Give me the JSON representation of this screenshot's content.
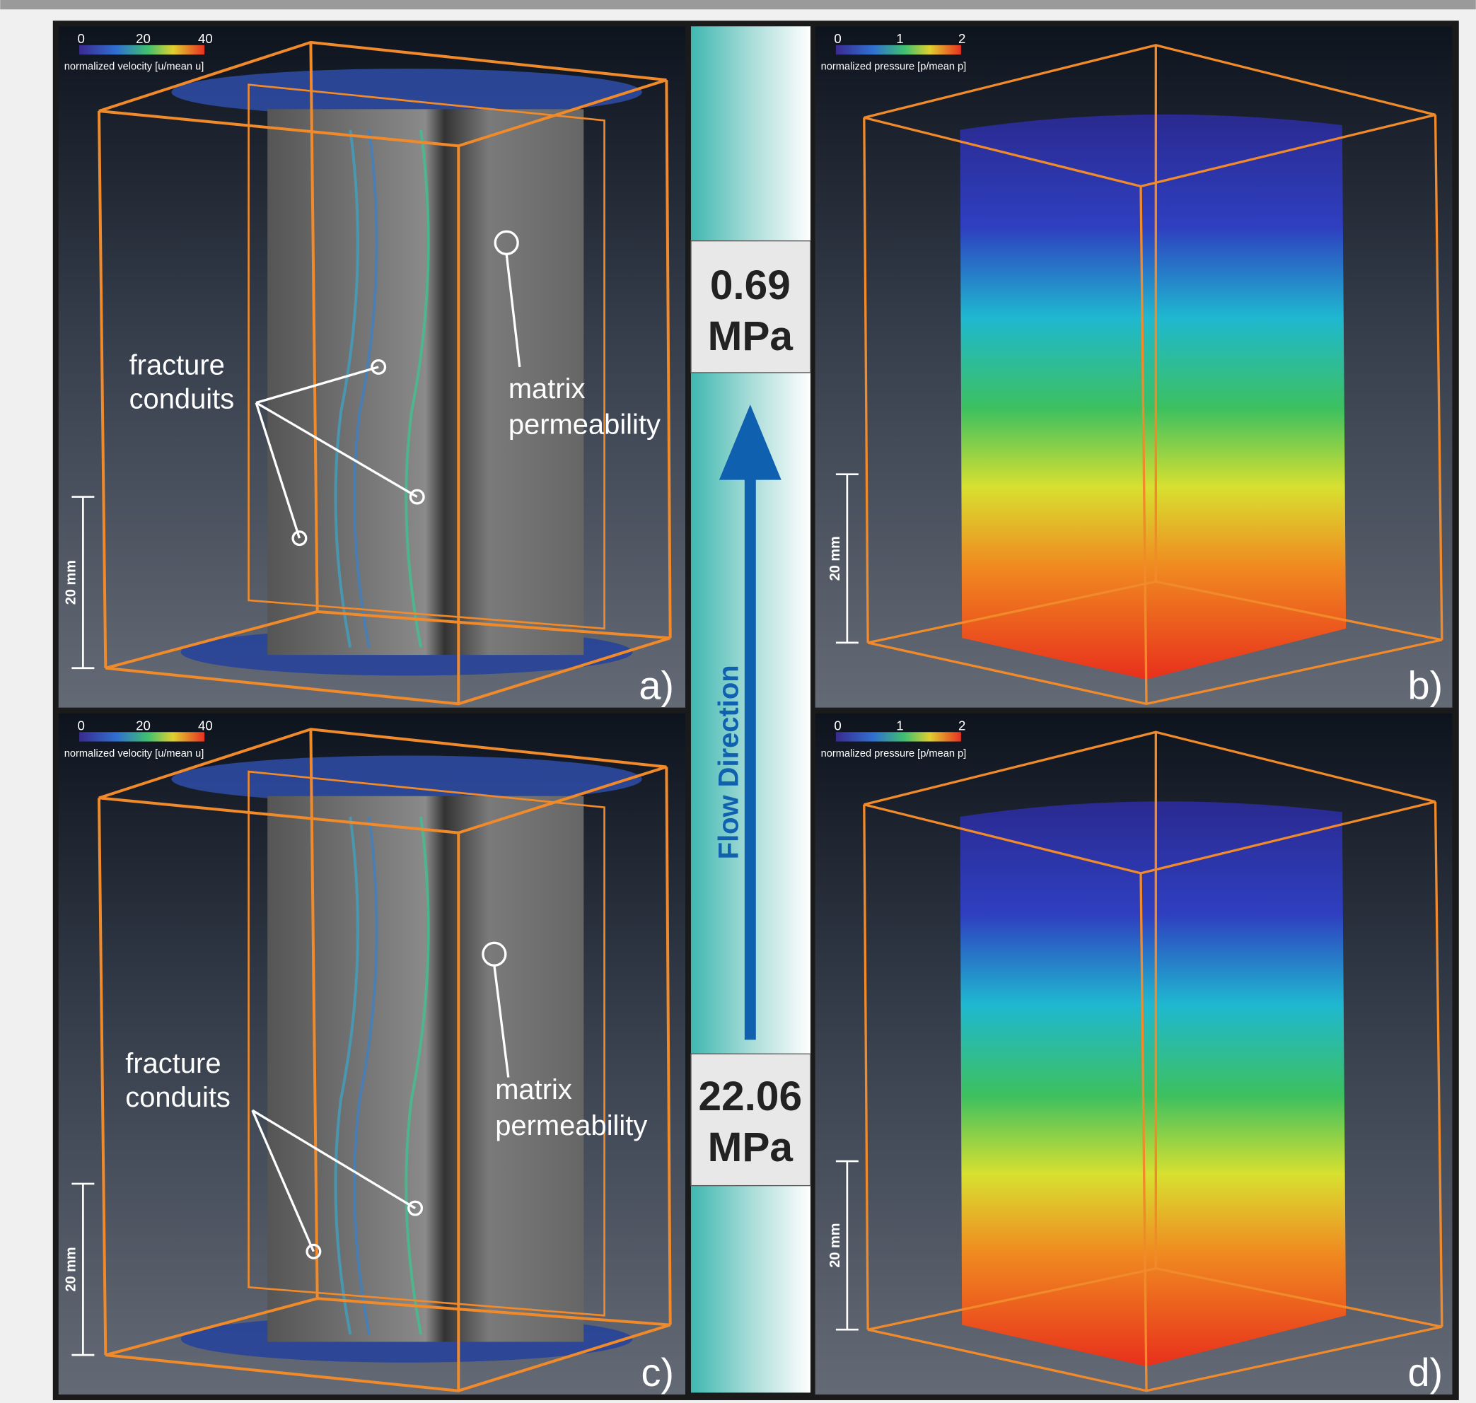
{
  "panels": [
    {
      "label": "a)",
      "colorbar": {
        "ticks": [
          0,
          20,
          40
        ],
        "title": "normalized velocity [u/mean u]"
      },
      "scale_bar": "20 mm",
      "annotations": [
        "fracture",
        "conduits",
        "matrix",
        "permeability"
      ]
    },
    {
      "label": "b)",
      "colorbar": {
        "ticks": [
          0,
          1,
          2
        ],
        "title": "normalized pressure [p/mean p]"
      },
      "scale_bar": "20 mm"
    },
    {
      "label": "c)",
      "colorbar": {
        "ticks": [
          0,
          20,
          40
        ],
        "title": "normalized velocity [u/mean u]"
      },
      "scale_bar": "20 mm",
      "annotations": [
        "fracture",
        "conduits",
        "matrix",
        "permeability"
      ]
    },
    {
      "label": "d)",
      "colorbar": {
        "ticks": [
          0,
          1,
          2
        ],
        "title": "normalized pressure [p/mean p]"
      },
      "scale_bar": "20 mm"
    }
  ],
  "center": {
    "top_pressure": {
      "value": 0.69,
      "unit": "MPa"
    },
    "bottom_pressure": {
      "value": 22.06,
      "unit": "MPa"
    },
    "arrow_label": "Flow Direction"
  }
}
